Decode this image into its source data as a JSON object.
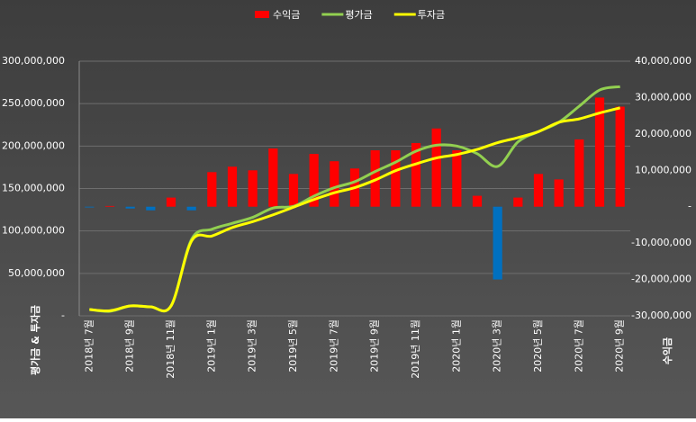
{
  "chart_data": {
    "type": "combo",
    "categories": [
      "2018년 7월",
      null,
      "2018년 9월",
      null,
      "2018년 11월",
      null,
      "2019년 1월",
      null,
      "2019년 3월",
      null,
      "2019년 5월",
      null,
      "2019년 7월",
      null,
      "2019년 9월",
      null,
      "2019년 11월",
      null,
      "2020년 1월",
      null,
      "2020년 3월",
      null,
      "2020년 5월",
      null,
      "2020년 7월",
      null,
      "2020년 9월"
    ],
    "series": [
      {
        "name": "수익금",
        "type": "bar",
        "axis": "y2",
        "color": "#ff0000",
        "negative_color": "#0070c0",
        "values": [
          -200000,
          200000,
          -500000,
          -1000000,
          2500000,
          -1000000,
          9500000,
          11000000,
          10000000,
          16000000,
          9000000,
          14500000,
          12500000,
          10500000,
          15500000,
          15500000,
          17500000,
          21500000,
          15500000,
          3000000,
          -20000000,
          2500000,
          9000000,
          7500000,
          18500000,
          30000000,
          27500000
        ]
      },
      {
        "name": "평가금",
        "type": "line",
        "color": "#92d050",
        "values": [
          7500000,
          5300000,
          11700000,
          10600000,
          11700000,
          90000000,
          102000000,
          109000000,
          116000000,
          127000000,
          129000000,
          141000000,
          151000000,
          158000000,
          170000000,
          181000000,
          194000000,
          201000000,
          200000000,
          191000000,
          176000000,
          205000000,
          217000000,
          228000000,
          247000000,
          266000000,
          270000000
        ]
      },
      {
        "name": "투자금",
        "type": "line",
        "color": "#ffff00",
        "values": [
          7400000,
          6000000,
          11700000,
          10600000,
          11700000,
          88000000,
          94000000,
          104000000,
          111000000,
          119000000,
          128000000,
          137000000,
          145000000,
          151000000,
          160000000,
          171000000,
          179000000,
          186000000,
          190000000,
          196000000,
          204000000,
          210000000,
          217000000,
          228000000,
          232000000,
          239000000,
          245000000
        ]
      }
    ],
    "y_label": "평가금 & 투자금",
    "y2_label": "수익금",
    "ylim": [
      0,
      300000000
    ],
    "yticks": [
      {
        "value": 0,
        "label": "-"
      },
      {
        "value": 50000000,
        "label": "50,000,000"
      },
      {
        "value": 100000000,
        "label": "100,000,000"
      },
      {
        "value": 150000000,
        "label": "150,000,000"
      },
      {
        "value": 200000000,
        "label": "200,000,000"
      },
      {
        "value": 250000000,
        "label": "250,000,000"
      },
      {
        "value": 300000000,
        "label": "300,000,000"
      }
    ],
    "y2lim": [
      -30000000,
      40000000
    ],
    "y2ticks": [
      {
        "value": -30000000,
        "label": "-30,000,000"
      },
      {
        "value": -20000000,
        "label": "-20,000,000"
      },
      {
        "value": -10000000,
        "label": "-10,000,000"
      },
      {
        "value": 0,
        "label": "-"
      },
      {
        "value": 10000000,
        "label": "10,000,000"
      },
      {
        "value": 20000000,
        "label": "20,000,000"
      },
      {
        "value": 30000000,
        "label": "30,000,000"
      },
      {
        "value": 40000000,
        "label": "40,000,000"
      }
    ],
    "grid": true,
    "legend": "top",
    "axis_title_color": "#ffff00"
  }
}
